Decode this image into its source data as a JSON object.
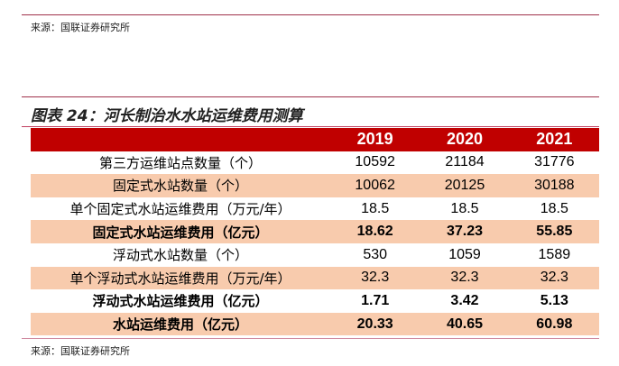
{
  "source_top": "来源：国联证券研究所",
  "title": "图表 24：河长制治水水站运维费用测算",
  "headers": [
    "",
    "2019",
    "2020",
    "2021"
  ],
  "rows": [
    {
      "label": "第三方运维站点数量（个）",
      "values": [
        "10592",
        "21184",
        "31776"
      ]
    },
    {
      "label": "固定式水站数量（个）",
      "values": [
        "10062",
        "20125",
        "30188"
      ]
    },
    {
      "label": "单个固定式水站运维费用（万元/年）",
      "values": [
        "18.5",
        "18.5",
        "18.5"
      ]
    },
    {
      "label": "固定式水站运维费用（亿元）",
      "values": [
        "18.62",
        "37.23",
        "55.85"
      ]
    },
    {
      "label": "浮动式水站数量（个）",
      "values": [
        "530",
        "1059",
        "1589"
      ]
    },
    {
      "label": "单个浮动式水站运维费用（万元/年）",
      "values": [
        "32.3",
        "32.3",
        "32.3"
      ]
    },
    {
      "label": "浮动式水站运维费用（亿元）",
      "values": [
        "1.71",
        "3.42",
        "5.13"
      ]
    },
    {
      "label": "水站运维费用（亿元）",
      "values": [
        "20.33",
        "40.65",
        "60.98"
      ]
    }
  ],
  "source_bottom": "来源：国联证券研究所"
}
